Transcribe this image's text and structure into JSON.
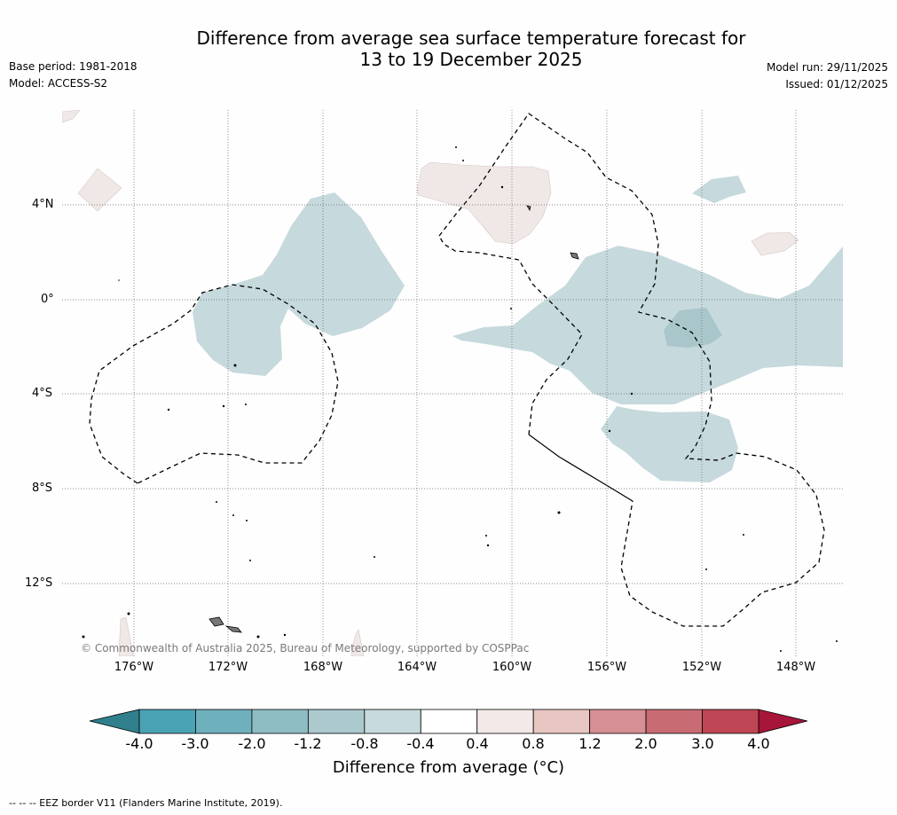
{
  "title": {
    "line1": "Difference from average sea surface temperature forecast for",
    "line2": "13 to 19 December 2025"
  },
  "meta_left": {
    "base_period": "Base period: 1981-2018",
    "model": "Model: ACCESS-S2"
  },
  "meta_right": {
    "model_run": "Model run: 29/11/2025",
    "issued": "Issued: 01/12/2025"
  },
  "map": {
    "lat_labels": [
      "4°N",
      "0°",
      "4°S",
      "8°S",
      "12°S"
    ],
    "lon_labels": [
      "176°W",
      "172°W",
      "168°W",
      "164°W",
      "160°W",
      "156°W",
      "152°W",
      "148°W"
    ],
    "copyright": "© Commonwealth of Australia 2025, Bureau of Meteorology, supported by COSPPac",
    "anomaly_colors": {
      "cool_light": "#c6d9dd",
      "cool_mid": "#a9c6cb",
      "warm_light": "#f0e8e7"
    }
  },
  "colorbar": {
    "ticks": [
      "-4.0",
      "-3.0",
      "-2.0",
      "-1.2",
      "-0.8",
      "-0.4",
      "0.4",
      "0.8",
      "1.2",
      "2.0",
      "3.0",
      "4.0"
    ],
    "colors": [
      "#4aa3b5",
      "#6fb0bd",
      "#8fbdc4",
      "#acc9ce",
      "#c7dadd",
      "#ffffff",
      "#f2e9e8",
      "#e8c6c1",
      "#d68f94",
      "#c96b73",
      "#bf4654"
    ],
    "low_extend_color": "#2f7f8c",
    "high_extend_color": "#a8153a",
    "label": "Difference from average (°C)"
  },
  "footnote": "-- -- -- EEZ border V11 (Flanders Marine Institute, 2019)."
}
